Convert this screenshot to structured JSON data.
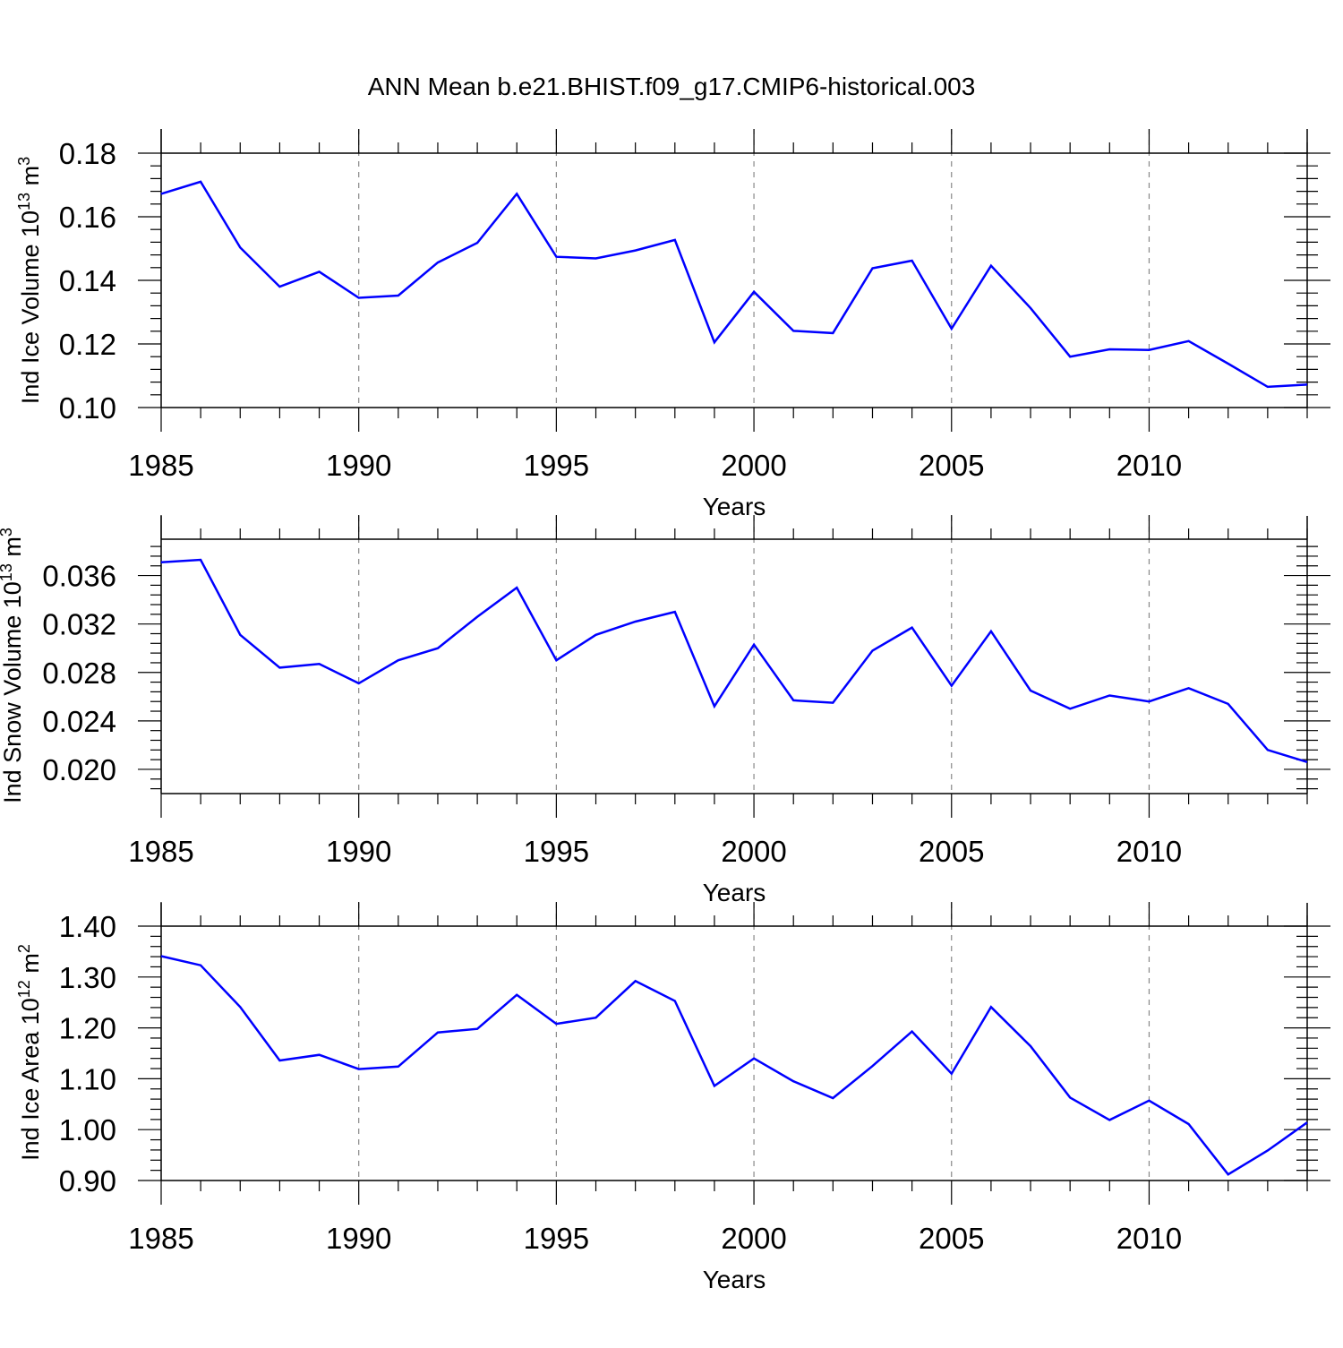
{
  "title": "ANN Mean b.e21.BHIST.f09_g17.CMIP6-historical.003",
  "colors": {
    "line": "#0000ff",
    "axis": "#000000",
    "grid": "#888888"
  },
  "chart_data": [
    {
      "type": "line",
      "ylabel": "Ind Ice Volume 10",
      "ylabel_exp": "13",
      "ylabel_unit": " m",
      "ylabel_unit_exp": "3",
      "xlabel": "Years",
      "xlim": [
        1985,
        2014
      ],
      "ylim": [
        0.1,
        0.18
      ],
      "xticks": [
        1985,
        1990,
        1995,
        2000,
        2005,
        2010
      ],
      "yticks": [
        "0.10",
        "0.12",
        "0.14",
        "0.16",
        "0.18"
      ],
      "grid": "vertical dashed at major x ticks",
      "x": [
        1985,
        1986,
        1987,
        1988,
        1989,
        1990,
        1991,
        1992,
        1993,
        1994,
        1995,
        1996,
        1997,
        1998,
        1999,
        2000,
        2001,
        2002,
        2003,
        2004,
        2005,
        2006,
        2007,
        2008,
        2009,
        2010,
        2011,
        2012,
        2013,
        2014
      ],
      "values": [
        0.1672,
        0.171,
        0.1503,
        0.138,
        0.1427,
        0.1345,
        0.1352,
        0.1456,
        0.1518,
        0.1672,
        0.1474,
        0.1469,
        0.1494,
        0.1527,
        0.1205,
        0.1364,
        0.1241,
        0.1234,
        0.1438,
        0.1462,
        0.1248,
        0.1446,
        0.1313,
        0.116,
        0.1183,
        0.1181,
        0.1209,
        0.1138,
        0.1065,
        0.1072
      ]
    },
    {
      "type": "line",
      "ylabel": "Ind Snow Volume 10",
      "ylabel_exp": "13",
      "ylabel_unit": " m",
      "ylabel_unit_exp": "3",
      "xlabel": "Years",
      "xlim": [
        1985,
        2014
      ],
      "ylim": [
        0.018,
        0.039
      ],
      "xticks": [
        1985,
        1990,
        1995,
        2000,
        2005,
        2010
      ],
      "yticks": [
        "0.020",
        "0.024",
        "0.028",
        "0.032",
        "0.036"
      ],
      "grid": "vertical dashed at major x ticks",
      "x": [
        1985,
        1986,
        1987,
        1988,
        1989,
        1990,
        1991,
        1992,
        1993,
        1994,
        1995,
        1996,
        1997,
        1998,
        1999,
        2000,
        2001,
        2002,
        2003,
        2004,
        2005,
        2006,
        2007,
        2008,
        2009,
        2010,
        2011,
        2012,
        2013,
        2014
      ],
      "values": [
        0.0371,
        0.0373,
        0.0311,
        0.0284,
        0.0287,
        0.0271,
        0.029,
        0.03,
        0.0326,
        0.035,
        0.029,
        0.0311,
        0.0322,
        0.033,
        0.0252,
        0.0303,
        0.0257,
        0.0255,
        0.0298,
        0.0317,
        0.0269,
        0.0314,
        0.0265,
        0.025,
        0.0261,
        0.0256,
        0.0267,
        0.0254,
        0.0216,
        0.0206
      ]
    },
    {
      "type": "line",
      "ylabel": "Ind Ice Area 10",
      "ylabel_exp": "12",
      "ylabel_unit": " m",
      "ylabel_unit_exp": "2",
      "xlabel": "Years",
      "xlim": [
        1985,
        2014
      ],
      "ylim": [
        0.9,
        1.4
      ],
      "xticks": [
        1985,
        1990,
        1995,
        2000,
        2005,
        2010
      ],
      "yticks": [
        "0.90",
        "1.00",
        "1.10",
        "1.20",
        "1.30",
        "1.40"
      ],
      "grid": "vertical dashed at major x ticks",
      "x": [
        1985,
        1986,
        1987,
        1988,
        1989,
        1990,
        1991,
        1992,
        1993,
        1994,
        1995,
        1996,
        1997,
        1998,
        1999,
        2000,
        2001,
        2002,
        2003,
        2004,
        2005,
        2006,
        2007,
        2008,
        2009,
        2010,
        2011,
        2012,
        2013,
        2014
      ],
      "values": [
        1.341,
        1.323,
        1.241,
        1.136,
        1.147,
        1.119,
        1.124,
        1.191,
        1.198,
        1.265,
        1.208,
        1.22,
        1.292,
        1.253,
        1.086,
        1.14,
        1.095,
        1.062,
        1.125,
        1.193,
        1.11,
        1.241,
        1.164,
        1.063,
        1.019,
        1.057,
        1.011,
        0.912,
        0.959,
        1.014
      ]
    }
  ]
}
